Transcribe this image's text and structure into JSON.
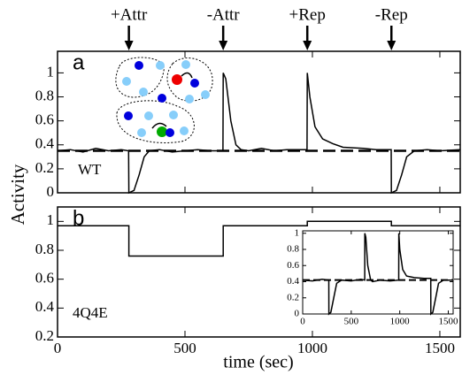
{
  "chart_data": [
    {
      "type": "line",
      "label": "a",
      "annotation": "WT",
      "ylabel": "Activity",
      "xlim": [
        0,
        1580
      ],
      "ylim": [
        0,
        1.18
      ],
      "yticks": [
        0,
        0.2,
        0.4,
        0.6,
        0.8,
        1
      ],
      "reference_line": 0.35,
      "color": "#000000",
      "events": [
        {
          "x": 280,
          "label": "+Attr"
        },
        {
          "x": 650,
          "label": "-Attr"
        },
        {
          "x": 980,
          "label": "+Rep"
        },
        {
          "x": 1310,
          "label": "-Rep"
        }
      ],
      "x": [
        0,
        50,
        100,
        150,
        200,
        250,
        279,
        280,
        300,
        320,
        340,
        360,
        400,
        450,
        500,
        550,
        600,
        649,
        650,
        660,
        680,
        700,
        720,
        750,
        800,
        850,
        900,
        979,
        980,
        990,
        1010,
        1040,
        1080,
        1120,
        1200,
        1250,
        1309,
        1310,
        1330,
        1350,
        1370,
        1400,
        1450,
        1500,
        1580
      ],
      "values": [
        0.35,
        0.36,
        0.34,
        0.37,
        0.35,
        0.36,
        0.35,
        0,
        0.02,
        0.15,
        0.3,
        0.35,
        0.36,
        0.34,
        0.35,
        0.36,
        0.35,
        0.35,
        1.0,
        0.95,
        0.6,
        0.4,
        0.36,
        0.35,
        0.37,
        0.35,
        0.36,
        0.36,
        1.0,
        0.8,
        0.55,
        0.45,
        0.41,
        0.38,
        0.37,
        0.36,
        0.36,
        0,
        0.02,
        0.15,
        0.3,
        0.35,
        0.36,
        0.35,
        0.36
      ]
    },
    {
      "type": "line",
      "label": "b",
      "annotation": "4Q4E",
      "xlabel": "time (sec)",
      "xlim": [
        0,
        1580
      ],
      "ylim": [
        0.2,
        1.1
      ],
      "xticks": [
        0,
        500,
        1000,
        1500
      ],
      "yticks": [
        0.2,
        0.4,
        0.6,
        0.8,
        1
      ],
      "color": "#000000",
      "x": [
        0,
        280,
        280,
        650,
        650,
        980,
        980,
        1310,
        1310,
        1580
      ],
      "values": [
        0.97,
        0.97,
        0.76,
        0.76,
        0.97,
        0.97,
        1.0,
        1.0,
        0.97,
        0.97
      ]
    },
    {
      "type": "line",
      "inset": true,
      "xlim": [
        0,
        1550
      ],
      "ylim": [
        0,
        1.03
      ],
      "xticks": [
        0,
        500,
        1000,
        1500
      ],
      "yticks": [
        0,
        0.2,
        0.4,
        0.6,
        0.8,
        1
      ],
      "reference_line": 0.42,
      "color": "#000000",
      "x": [
        0,
        100,
        200,
        269,
        270,
        290,
        320,
        350,
        400,
        500,
        600,
        639,
        640,
        650,
        670,
        700,
        720,
        800,
        900,
        989,
        990,
        1000,
        1030,
        1070,
        1150,
        1250,
        1319,
        1320,
        1340,
        1370,
        1400,
        1450,
        1550
      ],
      "values": [
        0.42,
        0.41,
        0.43,
        0.42,
        0,
        0.02,
        0.2,
        0.38,
        0.42,
        0.41,
        0.43,
        0.42,
        1.0,
        0.95,
        0.6,
        0.42,
        0.4,
        0.42,
        0.41,
        0.42,
        1.0,
        0.8,
        0.55,
        0.47,
        0.45,
        0.44,
        0.44,
        0,
        0.02,
        0.2,
        0.38,
        0.42,
        0.42
      ]
    }
  ]
}
